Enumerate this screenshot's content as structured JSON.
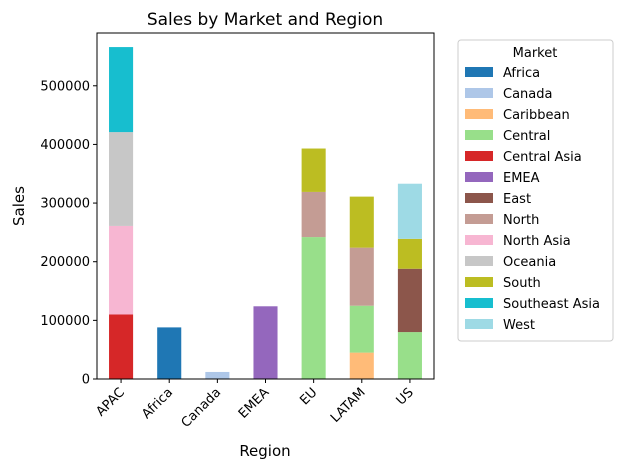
{
  "chart_data": {
    "type": "bar",
    "stacked": true,
    "title": "Sales by Market and Region",
    "xlabel": "Region",
    "ylabel": "Sales",
    "ylim": [
      0,
      590000
    ],
    "yticks": [
      0,
      100000,
      200000,
      300000,
      400000,
      500000
    ],
    "ytick_labels": [
      "0",
      "100000",
      "200000",
      "300000",
      "400000",
      "500000"
    ],
    "categories": [
      "APAC",
      "Africa",
      "Canada",
      "EMEA",
      "EU",
      "LATAM",
      "US"
    ],
    "legend_title": "Market",
    "legend_position": "outside-right",
    "grid": false,
    "series": [
      {
        "name": "Africa",
        "color": "#1f77b4",
        "values": [
          0,
          88000,
          0,
          0,
          0,
          0,
          0
        ]
      },
      {
        "name": "Canada",
        "color": "#aec7e8",
        "values": [
          0,
          0,
          12000,
          0,
          0,
          0,
          0
        ]
      },
      {
        "name": "Caribbean",
        "color": "#ffbb78",
        "values": [
          0,
          0,
          0,
          0,
          0,
          45000,
          0
        ]
      },
      {
        "name": "Central",
        "color": "#98df8a",
        "values": [
          0,
          0,
          0,
          0,
          242000,
          80000,
          80000
        ]
      },
      {
        "name": "Central Asia",
        "color": "#d62728",
        "values": [
          110000,
          0,
          0,
          0,
          0,
          0,
          0
        ]
      },
      {
        "name": "EMEA",
        "color": "#9467bd",
        "values": [
          0,
          0,
          0,
          124000,
          0,
          0,
          0
        ]
      },
      {
        "name": "East",
        "color": "#8c564b",
        "values": [
          0,
          0,
          0,
          0,
          0,
          0,
          108000
        ]
      },
      {
        "name": "North",
        "color": "#c49c94",
        "values": [
          0,
          0,
          0,
          0,
          77000,
          99000,
          0
        ]
      },
      {
        "name": "North Asia",
        "color": "#f7b6d2",
        "values": [
          151000,
          0,
          0,
          0,
          0,
          0,
          0
        ]
      },
      {
        "name": "Oceania",
        "color": "#c7c7c7",
        "values": [
          160000,
          0,
          0,
          0,
          0,
          0,
          0
        ]
      },
      {
        "name": "South",
        "color": "#bcbd22",
        "values": [
          0,
          0,
          0,
          0,
          74000,
          87000,
          51000
        ]
      },
      {
        "name": "Southeast Asia",
        "color": "#17becf",
        "values": [
          145000,
          0,
          0,
          0,
          0,
          0,
          0
        ]
      },
      {
        "name": "West",
        "color": "#9edae5",
        "values": [
          0,
          0,
          0,
          0,
          0,
          0,
          94000
        ]
      }
    ]
  }
}
